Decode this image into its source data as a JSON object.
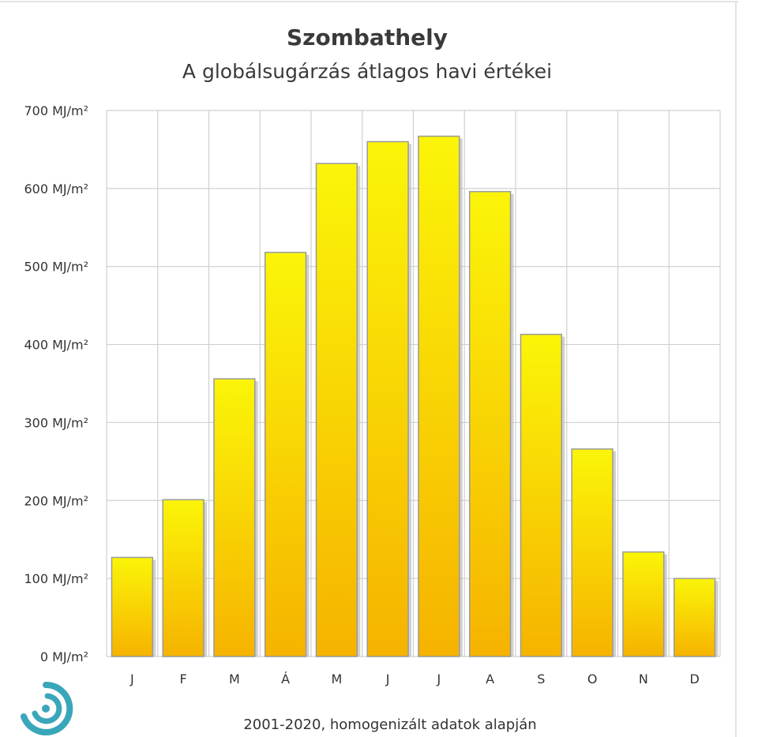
{
  "chart_data": {
    "type": "bar",
    "title": "Szombathely",
    "subtitle": "A globálsugárzás átlagos havi értékei",
    "categories": [
      "J",
      "F",
      "M",
      "Á",
      "M",
      "J",
      "J",
      "A",
      "S",
      "O",
      "N",
      "D"
    ],
    "values": [
      127,
      201,
      356,
      518,
      632,
      660,
      667,
      596,
      413,
      266,
      134,
      100
    ],
    "ylim": [
      0,
      700
    ],
    "yticks": [
      0,
      100,
      200,
      300,
      400,
      500,
      600,
      700
    ],
    "ytick_labels": [
      "0 MJ/m²",
      "100 MJ/m²",
      "200 MJ/m²",
      "300 MJ/m²",
      "400 MJ/m²",
      "500 MJ/m²",
      "600 MJ/m²",
      "700 MJ/m²"
    ],
    "grid": true,
    "legend": "none",
    "footer": "2001-2020,  homogenizált adatok alapján",
    "colors": {
      "bar_top": "#fbf508",
      "bar_bottom": "#f6b300",
      "bar_stroke": "#9a9a9a",
      "grid": "#d0d0d0",
      "logo": "#3aa6b9"
    }
  },
  "logo": {
    "icon": "spiral-logo-icon"
  }
}
